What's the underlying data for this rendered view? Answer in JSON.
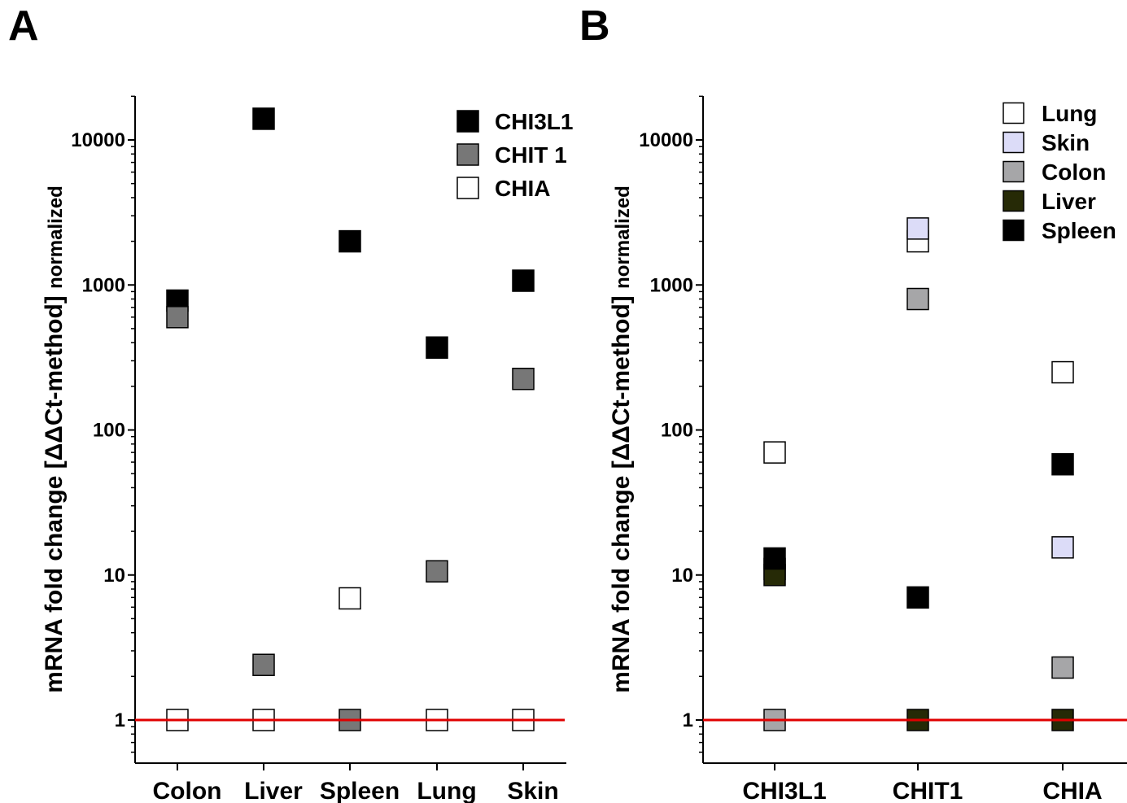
{
  "panels": [
    {
      "letter": "A"
    },
    {
      "letter": "B"
    }
  ],
  "chart_data": [
    {
      "type": "scatter",
      "panel": "A",
      "title": "",
      "ylabel": "mRNA fold change [ΔΔCt-method]",
      "ylabel_suffix": "normalized",
      "yscale": "log",
      "ylim": [
        0.5,
        20000
      ],
      "yticks": [
        1,
        10,
        100,
        1000,
        10000
      ],
      "ytick_labels": [
        "1",
        "10",
        "100",
        "1000",
        "10000"
      ],
      "reference_line": {
        "value": 1,
        "color": "#e00000"
      },
      "categories": [
        "Colon",
        "Liver",
        "Spleen",
        "Lung",
        "Skin"
      ],
      "legend_position": "top-right",
      "series": [
        {
          "name": "CHI3L1",
          "color": "#000000",
          "values": [
            780,
            14000,
            2000,
            370,
            1070
          ]
        },
        {
          "name": "CHIT 1",
          "color": "#777777",
          "values": [
            600,
            2.4,
            1,
            10.6,
            225
          ]
        },
        {
          "name": "CHIA",
          "color": "#ffffff",
          "values": [
            1,
            1,
            6.9,
            1,
            1
          ]
        }
      ]
    },
    {
      "type": "scatter",
      "panel": "B",
      "title": "",
      "ylabel": "mRNA fold change [ΔΔCt-method]",
      "ylabel_suffix": "normalized",
      "yscale": "log",
      "ylim": [
        0.5,
        20000
      ],
      "yticks": [
        1,
        10,
        100,
        1000,
        10000
      ],
      "ytick_labels": [
        "1",
        "10",
        "100",
        "1000",
        "10000"
      ],
      "reference_line": {
        "value": 1,
        "color": "#e00000"
      },
      "categories": [
        "CHI3L1",
        "CHIT1",
        "CHIA"
      ],
      "legend_position": "top-right",
      "series": [
        {
          "name": "Lung",
          "color": "#ffffff",
          "values": [
            70,
            2000,
            250
          ]
        },
        {
          "name": "Skin",
          "color": "#dcdcf8",
          "values": [
            11,
            2450,
            15.5
          ]
        },
        {
          "name": "Colon",
          "color": "#a6a6a8",
          "values": [
            1,
            800,
            2.3
          ]
        },
        {
          "name": "Liver",
          "color": "#262a06",
          "values": [
            10,
            1,
            1
          ]
        },
        {
          "name": "Spleen",
          "color": "#000000",
          "values": [
            13,
            7,
            58
          ]
        }
      ]
    }
  ]
}
